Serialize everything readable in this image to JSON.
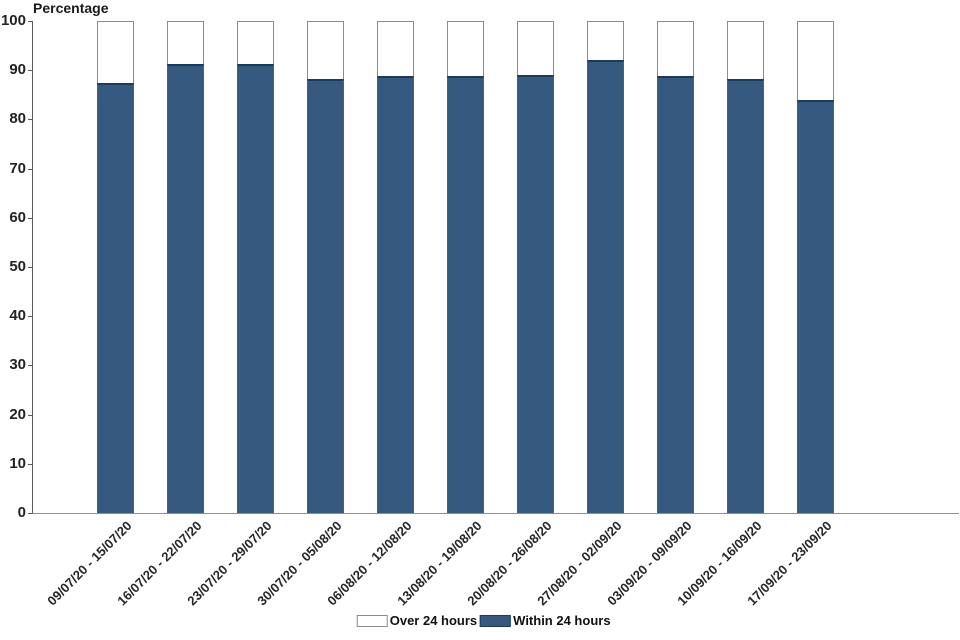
{
  "chart_data": {
    "type": "bar",
    "stacked": true,
    "title": "Percentage",
    "ylabel": "Percentage",
    "xlabel": "",
    "ylim": [
      0,
      100
    ],
    "yticks": [
      0,
      10,
      20,
      30,
      40,
      50,
      60,
      70,
      80,
      90,
      100
    ],
    "grid": false,
    "legend_position": "bottom",
    "categories": [
      "09/07/20 - 15/07/20",
      "16/07/20 - 22/07/20",
      "23/07/20 - 29/07/20",
      "30/07/20 - 05/08/20",
      "06/08/20 - 12/08/20",
      "13/08/20 - 19/08/20",
      "20/08/20 - 26/08/20",
      "27/08/20 - 02/09/20",
      "03/09/20 - 09/09/20",
      "10/09/20 - 16/09/20",
      "17/09/20 - 23/09/20"
    ],
    "series": [
      {
        "name": "Over 24 hours",
        "color": "#FFFFFF",
        "border_color": "#8C8C8C",
        "values": [
          12.6,
          8.8,
          8.7,
          11.8,
          11.1,
          11.2,
          11.0,
          8.0,
          11.2,
          11.7,
          16.0
        ]
      },
      {
        "name": "Within 24 hours",
        "color": "#35597F",
        "border_color": "#1C3A5E",
        "values": [
          87.4,
          91.2,
          91.3,
          88.2,
          88.9,
          88.8,
          89.0,
          92.0,
          88.8,
          88.3,
          84.0
        ]
      }
    ]
  }
}
